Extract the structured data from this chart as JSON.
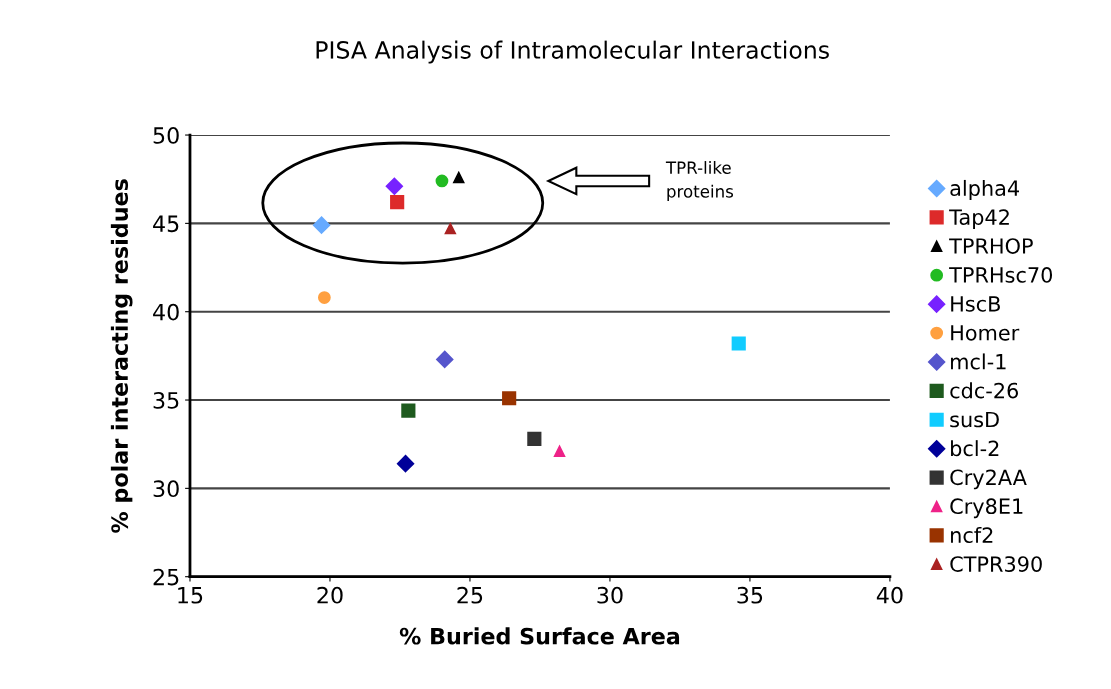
{
  "chart_data": {
    "type": "scatter",
    "title": "PISA Analysis of Intramolecular Interactions",
    "xlabel": "% Buried Surface Area",
    "ylabel": "% polar interacting residues",
    "xlim": [
      15,
      40
    ],
    "xticks": [
      15,
      20,
      25,
      30,
      35,
      40
    ],
    "ylim": [
      25,
      50
    ],
    "yticks": [
      25,
      30,
      35,
      40,
      45,
      50
    ],
    "grid": "y",
    "legend": "right",
    "annotations": [
      "TPR-like\nproteins"
    ],
    "series": [
      {
        "name": "alpha4",
        "color": "#66aaff",
        "marker": "diamond",
        "x": [
          19.7
        ],
        "values": [
          44.9
        ]
      },
      {
        "name": "Tap42",
        "color": "#dd2a2a",
        "marker": "square",
        "x": [
          22.4
        ],
        "values": [
          46.2
        ]
      },
      {
        "name": "TPRHOP",
        "color": "#000000",
        "marker": "triangle",
        "x": [
          24.6
        ],
        "values": [
          47.6
        ]
      },
      {
        "name": "TPRHsc70",
        "color": "#22bb22",
        "marker": "circle",
        "x": [
          24.0
        ],
        "values": [
          47.4
        ]
      },
      {
        "name": "HscB",
        "color": "#7722ff",
        "marker": "diamond",
        "x": [
          22.3
        ],
        "values": [
          47.1
        ]
      },
      {
        "name": "Homer",
        "color": "#ffa040",
        "marker": "circle",
        "x": [
          19.8
        ],
        "values": [
          40.8
        ]
      },
      {
        "name": "mcl-1",
        "color": "#5555cc",
        "marker": "diamond",
        "x": [
          24.1
        ],
        "values": [
          37.3
        ]
      },
      {
        "name": "cdc-26",
        "color": "#1e5a1e",
        "marker": "square",
        "x": [
          22.8
        ],
        "values": [
          34.4
        ]
      },
      {
        "name": "susD",
        "color": "#11ccff",
        "marker": "square",
        "x": [
          34.6
        ],
        "values": [
          38.2
        ]
      },
      {
        "name": "bcl-2",
        "color": "#000099",
        "marker": "diamond",
        "x": [
          22.7
        ],
        "values": [
          31.4
        ]
      },
      {
        "name": "Cry2AA",
        "color": "#333333",
        "marker": "square",
        "x": [
          27.3
        ],
        "values": [
          32.8
        ]
      },
      {
        "name": "Cry8E1",
        "color": "#ee2288",
        "marker": "triangle",
        "x": [
          28.2
        ],
        "values": [
          32.1
        ]
      },
      {
        "name": "ncf2",
        "color": "#993300",
        "marker": "square",
        "x": [
          26.4
        ],
        "values": [
          35.1
        ]
      },
      {
        "name": "CTPR390",
        "color": "#aa2222",
        "marker": "triangle",
        "x": [
          24.3
        ],
        "values": [
          44.7
        ]
      }
    ]
  }
}
